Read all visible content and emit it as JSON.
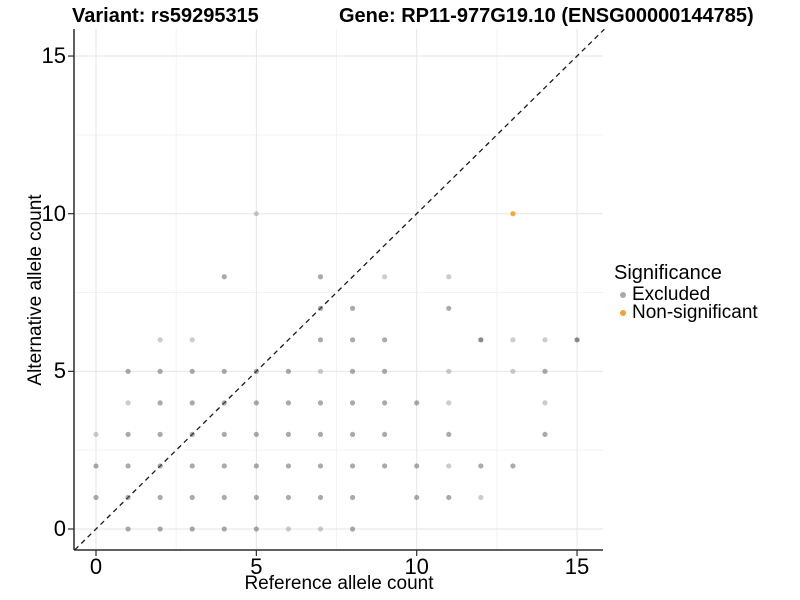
{
  "chart_data": {
    "type": "scatter",
    "titles": {
      "left": "Variant: rs59295315",
      "right": "Gene: RP11-977G19.10 (ENSG00000144785)"
    },
    "axes": {
      "x": {
        "label": "Reference allele count",
        "tick_labels": [
          "0",
          "5",
          "10",
          "15"
        ],
        "tick_values": [
          0,
          5,
          10,
          15
        ],
        "minor_tick_values": [
          2.5,
          7.5,
          12.5
        ],
        "range": [
          -0.66,
          15.85
        ]
      },
      "y": {
        "label": "Alternative allele count",
        "tick_labels": [
          "0",
          "5",
          "10",
          "15"
        ],
        "tick_values": [
          0,
          5,
          10,
          15
        ],
        "minor_tick_values": [
          2.5,
          7.5,
          12.5
        ],
        "range": [
          -0.66,
          15.85
        ]
      }
    },
    "legend": {
      "title": "Significance",
      "items": [
        {
          "label": "Excluded",
          "color": "#A9A9A9"
        },
        {
          "label": "Non-significant",
          "color": "#F9A130"
        }
      ]
    },
    "reference_line": {
      "style": "dashed",
      "equation": "y = x",
      "color": "#1a1a1a"
    },
    "grid": {
      "major_color": "#E6E6E6",
      "minor_color": "#F3F3F3"
    },
    "series": [
      {
        "name": "Excluded",
        "color": "#555555",
        "points": [
          [
            1,
            0,
            0.5
          ],
          [
            2,
            0,
            0.5
          ],
          [
            3,
            0,
            0.5
          ],
          [
            4,
            0,
            0.5
          ],
          [
            5,
            0,
            0.5
          ],
          [
            6,
            0,
            0.3
          ],
          [
            7,
            0,
            0.3
          ],
          [
            8,
            0,
            0.5
          ],
          [
            0,
            1,
            0.5
          ],
          [
            1,
            1,
            0.5
          ],
          [
            2,
            1,
            0.5
          ],
          [
            3,
            1,
            0.5
          ],
          [
            4,
            1,
            0.5
          ],
          [
            5,
            1,
            0.5
          ],
          [
            6,
            1,
            0.5
          ],
          [
            7,
            1,
            0.5
          ],
          [
            8,
            1,
            0.5
          ],
          [
            10,
            1,
            0.5
          ],
          [
            11,
            1,
            0.5
          ],
          [
            12,
            1,
            0.3
          ],
          [
            0,
            2,
            0.5
          ],
          [
            1,
            2,
            0.5
          ],
          [
            2,
            2,
            0.5
          ],
          [
            3,
            2,
            0.5
          ],
          [
            4,
            2,
            0.5
          ],
          [
            5,
            2,
            0.5
          ],
          [
            6,
            2,
            0.5
          ],
          [
            7,
            2,
            0.5
          ],
          [
            8,
            2,
            0.5
          ],
          [
            9,
            2,
            0.5
          ],
          [
            10,
            2,
            0.5
          ],
          [
            11,
            2,
            0.3
          ],
          [
            12,
            2,
            0.5
          ],
          [
            13,
            2,
            0.5
          ],
          [
            0,
            3,
            0.3
          ],
          [
            1,
            3,
            0.5
          ],
          [
            2,
            3,
            0.5
          ],
          [
            3,
            3,
            0.5
          ],
          [
            4,
            3,
            0.5
          ],
          [
            5,
            3,
            0.5
          ],
          [
            6,
            3,
            0.5
          ],
          [
            7,
            3,
            0.5
          ],
          [
            8,
            3,
            0.5
          ],
          [
            9,
            3,
            0.5
          ],
          [
            11,
            3,
            0.5
          ],
          [
            14,
            3,
            0.5
          ],
          [
            1,
            4,
            0.3
          ],
          [
            2,
            4,
            0.5
          ],
          [
            3,
            4,
            0.5
          ],
          [
            4,
            4,
            0.5
          ],
          [
            5,
            4,
            0.5
          ],
          [
            6,
            4,
            0.5
          ],
          [
            7,
            4,
            0.5
          ],
          [
            8,
            4,
            0.5
          ],
          [
            9,
            4,
            0.5
          ],
          [
            10,
            4,
            0.5
          ],
          [
            11,
            4,
            0.3
          ],
          [
            14,
            4,
            0.3
          ],
          [
            1,
            5,
            0.5
          ],
          [
            2,
            5,
            0.5
          ],
          [
            3,
            5,
            0.5
          ],
          [
            4,
            5,
            0.5
          ],
          [
            5,
            5,
            0.5
          ],
          [
            6,
            5,
            0.5
          ],
          [
            7,
            5,
            0.3
          ],
          [
            8,
            5,
            0.5
          ],
          [
            9,
            5,
            0.5
          ],
          [
            11,
            5,
            0.3
          ],
          [
            13,
            5,
            0.3
          ],
          [
            14,
            5,
            0.5
          ],
          [
            2,
            6,
            0.3
          ],
          [
            3,
            6,
            0.3
          ],
          [
            7,
            6,
            0.5
          ],
          [
            8,
            6,
            0.5
          ],
          [
            9,
            6,
            0.5
          ],
          [
            12,
            6,
            0.68
          ],
          [
            13,
            6,
            0.3
          ],
          [
            14,
            6,
            0.3
          ],
          [
            15,
            6,
            0.68
          ],
          [
            7,
            7,
            0.5
          ],
          [
            8,
            7,
            0.5
          ],
          [
            11,
            7,
            0.5
          ],
          [
            4,
            8,
            0.5
          ],
          [
            7,
            8,
            0.5
          ],
          [
            9,
            8,
            0.3
          ],
          [
            11,
            8,
            0.3
          ],
          [
            5,
            10,
            0.3
          ]
        ]
      },
      {
        "name": "Non-significant",
        "color": "#F9A130",
        "points": [
          [
            13,
            10,
            0.95
          ]
        ]
      }
    ]
  }
}
